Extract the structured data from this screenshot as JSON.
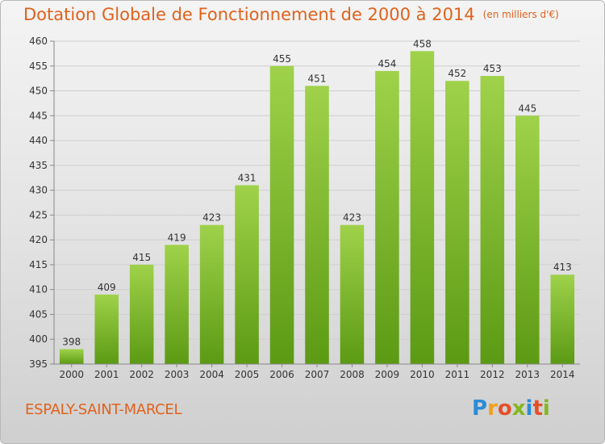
{
  "chart_data": {
    "type": "bar",
    "title": "Dotation Globale de Fonctionnement de 2000 à 2014",
    "unit_note": "(en milliers d'€)",
    "categories": [
      "2000",
      "2001",
      "2002",
      "2003",
      "2004",
      "2005",
      "2006",
      "2007",
      "2008",
      "2009",
      "2010",
      "2011",
      "2012",
      "2013",
      "2014"
    ],
    "values": [
      398,
      409,
      415,
      419,
      423,
      431,
      455,
      451,
      423,
      454,
      458,
      452,
      453,
      445,
      413
    ],
    "ylim": [
      395,
      460
    ],
    "yticks": [
      395,
      400,
      405,
      410,
      415,
      420,
      425,
      430,
      435,
      440,
      445,
      450,
      455,
      460
    ],
    "grid": true,
    "bar_color": "#7fbf2a"
  },
  "footer": {
    "place_name": "ESPALY-SAINT-MARCEL",
    "logo_letters": [
      "P",
      "r",
      "o",
      "x",
      "i",
      "t",
      "i"
    ]
  }
}
